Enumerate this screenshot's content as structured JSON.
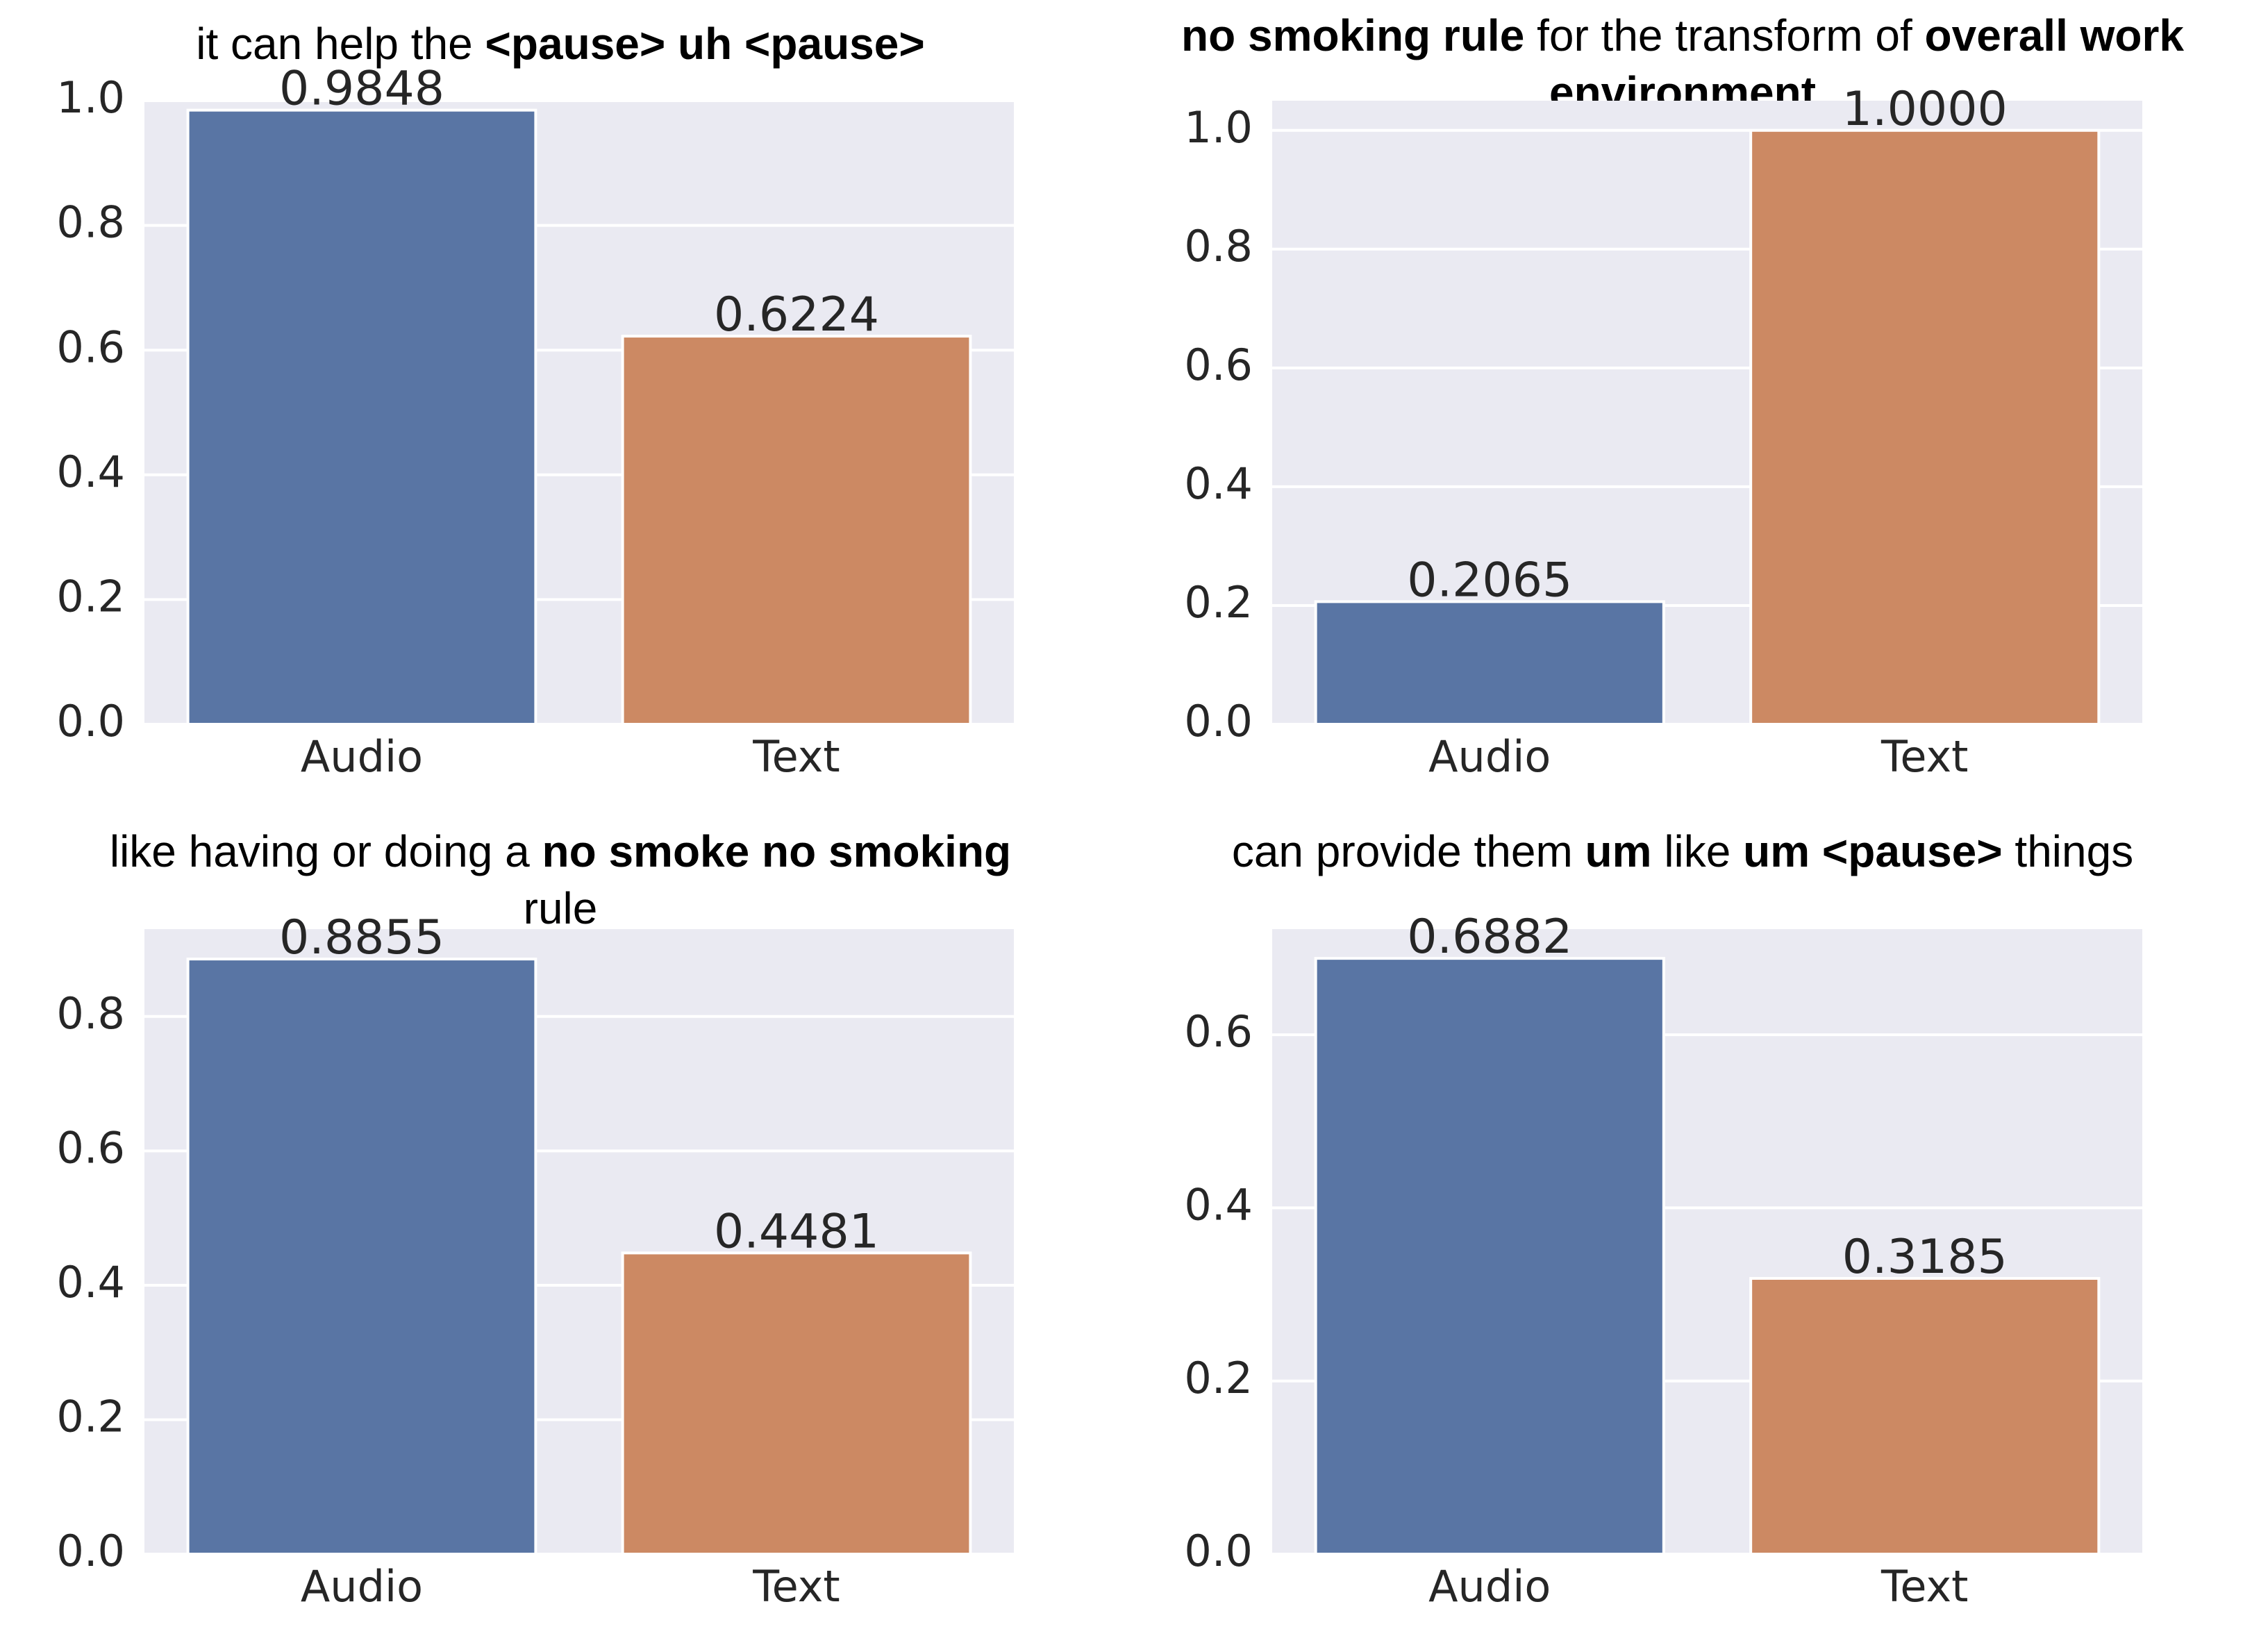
{
  "chart_data": [
    {
      "type": "bar",
      "title_segments": [
        {
          "text": "it can help the ",
          "bold": false
        },
        {
          "text": "<pause> uh <pause>",
          "bold": true
        }
      ],
      "categories": [
        "Audio",
        "Text"
      ],
      "values": [
        0.9848,
        0.6224
      ],
      "value_labels": [
        "0.9848",
        "0.6224"
      ],
      "ylim": [
        0,
        1.0
      ],
      "yticks": [
        "0.0",
        "0.2",
        "0.4",
        "0.6",
        "0.8",
        "1.0"
      ],
      "colors": [
        "#5975a4",
        "#cc8963"
      ],
      "xlabel": "",
      "ylabel": ""
    },
    {
      "type": "bar",
      "title_segments": [
        {
          "text": "no smoking rule",
          "bold": true
        },
        {
          "text": " for the transform of ",
          "bold": false
        },
        {
          "text": "overall work",
          "bold": true
        },
        {
          "text": "environment",
          "bold": true
        }
      ],
      "categories": [
        "Audio",
        "Text"
      ],
      "values": [
        0.2065,
        1.0
      ],
      "value_labels": [
        "0.2065",
        "1.0000"
      ],
      "ylim": [
        0,
        1.05
      ],
      "yticks": [
        "0.0",
        "0.2",
        "0.4",
        "0.6",
        "0.8",
        "1.0"
      ],
      "colors": [
        "#5975a4",
        "#cc8963"
      ],
      "xlabel": "",
      "ylabel": ""
    },
    {
      "type": "bar",
      "title_segments": [
        {
          "text": "like having or doing a ",
          "bold": false
        },
        {
          "text": "no smoke no smoking",
          "bold": true
        },
        {
          "text": "rule",
          "bold": false
        }
      ],
      "categories": [
        "Audio",
        "Text"
      ],
      "values": [
        0.8855,
        0.4481
      ],
      "value_labels": [
        "0.8855",
        "0.4481"
      ],
      "ylim": [
        0,
        0.93
      ],
      "yticks": [
        "0.0",
        "0.2",
        "0.4",
        "0.6",
        "0.8"
      ],
      "colors": [
        "#5975a4",
        "#cc8963"
      ],
      "xlabel": "",
      "ylabel": ""
    },
    {
      "type": "bar",
      "title_segments": [
        {
          "text": "can provide them ",
          "bold": false
        },
        {
          "text": "um",
          "bold": true
        },
        {
          "text": " like ",
          "bold": false
        },
        {
          "text": "um <pause>",
          "bold": true
        },
        {
          "text": " things",
          "bold": false
        }
      ],
      "categories": [
        "Audio",
        "Text"
      ],
      "values": [
        0.6882,
        0.3185
      ],
      "value_labels": [
        "0.6882",
        "0.3185"
      ],
      "ylim": [
        0,
        0.722
      ],
      "yticks": [
        "0.0",
        "0.2",
        "0.4",
        "0.6"
      ],
      "colors": [
        "#5975a4",
        "#cc8963"
      ],
      "xlabel": "",
      "ylabel": ""
    }
  ]
}
